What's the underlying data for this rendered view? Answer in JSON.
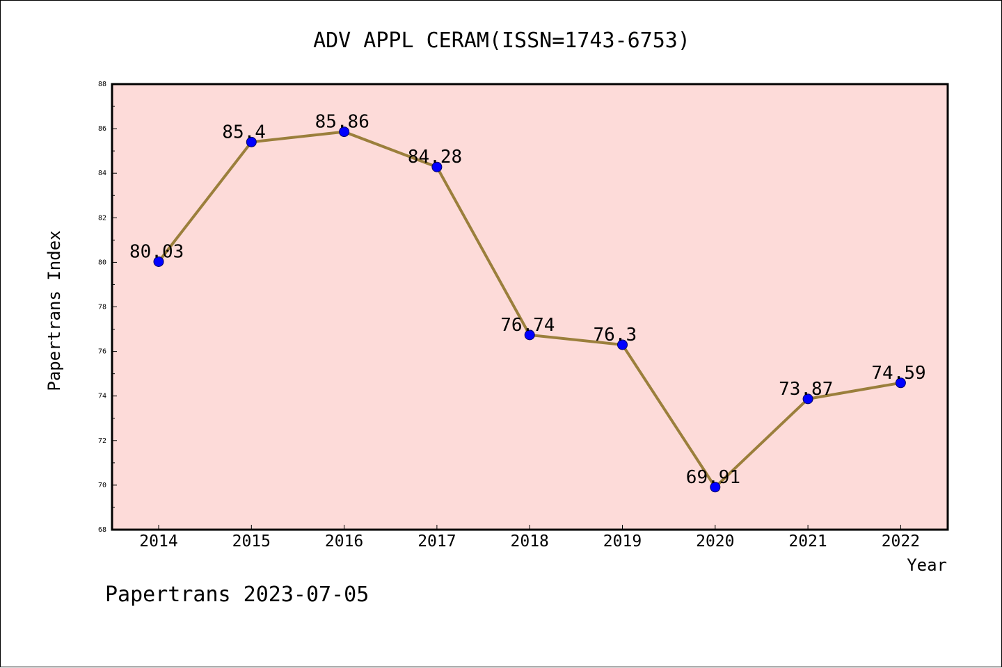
{
  "chart_data": {
    "type": "line",
    "title": "ADV APPL CERAM(ISSN=1743-6753)",
    "xlabel": "Year",
    "ylabel": "Papertrans Index",
    "footer": "Papertrans 2023-07-05",
    "categories": [
      "2014",
      "2015",
      "2016",
      "2017",
      "2018",
      "2019",
      "2020",
      "2021",
      "2022"
    ],
    "series": [
      {
        "values": [
          80.03,
          85.4,
          85.86,
          84.28,
          76.74,
          76.3,
          69.91,
          73.87,
          74.59
        ],
        "labels": [
          "80.03",
          "85.4",
          "85.86",
          "84.28",
          "76.74",
          "76.3",
          "69.91",
          "73.87",
          "74.59"
        ]
      }
    ],
    "ylim": [
      68,
      88
    ],
    "yticks": [
      "68",
      "70",
      "72",
      "74",
      "76",
      "78",
      "80",
      "82",
      "84",
      "86",
      "88"
    ],
    "grid": false,
    "legend": "none",
    "colors": {
      "plot_background": "#fddbd9",
      "line": "#9b7f3c",
      "marker": "#0000ff",
      "axis": "#000000"
    }
  }
}
